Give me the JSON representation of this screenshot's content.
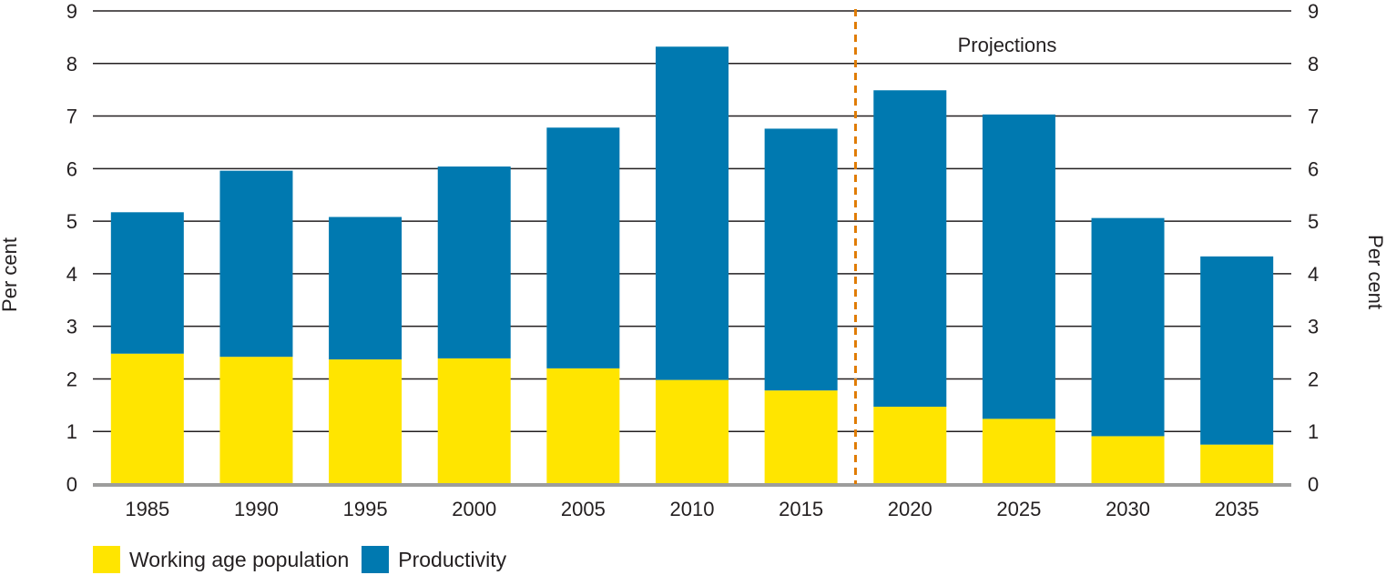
{
  "chart_data": {
    "type": "bar",
    "stacked": true,
    "categories": [
      "1985",
      "1990",
      "1995",
      "2000",
      "2005",
      "2010",
      "2015",
      "2020",
      "2025",
      "2030",
      "2035"
    ],
    "series": [
      {
        "name": "Working age population",
        "color": "#ffe500",
        "values": [
          2.48,
          2.42,
          2.37,
          2.39,
          2.2,
          1.98,
          1.78,
          1.47,
          1.24,
          0.91,
          0.75
        ]
      },
      {
        "name": "Productivity",
        "color": "#0079b0",
        "values": [
          2.69,
          3.54,
          2.71,
          3.65,
          4.58,
          6.34,
          4.98,
          6.02,
          5.79,
          4.15,
          3.58
        ]
      }
    ],
    "ylim": [
      0,
      9
    ],
    "yticks": [
      "0",
      "1",
      "2",
      "3",
      "4",
      "5",
      "6",
      "7",
      "8",
      "9"
    ],
    "ylabel_left": "Per cent",
    "ylabel_right": "Per cent",
    "annotation": "Projections",
    "projection_start_after": "2015",
    "grid": true,
    "legend_position": "bottom-left"
  },
  "colors": {
    "grid": "#231f20",
    "baseline": "#9d9d9c",
    "divider": "#e07b00"
  }
}
